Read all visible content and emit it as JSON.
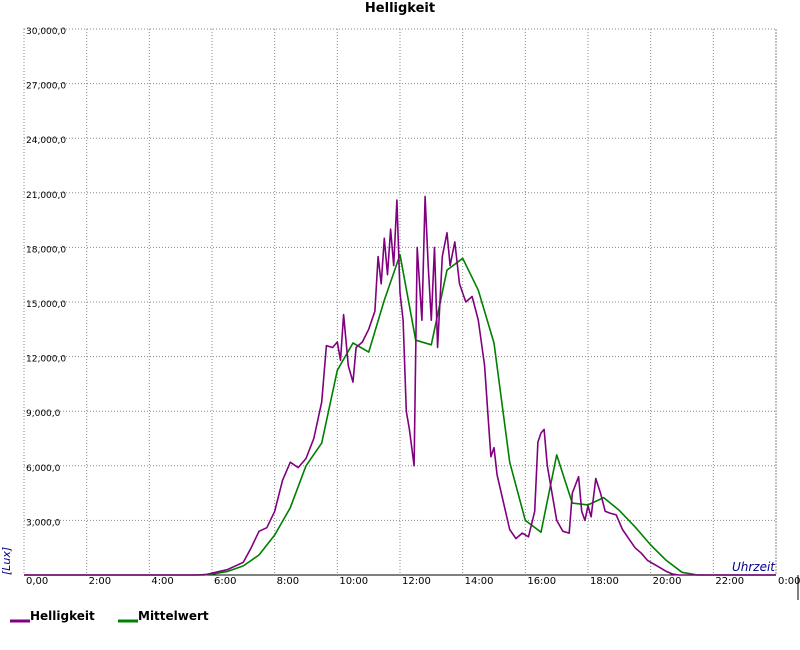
{
  "chart_data": {
    "type": "line",
    "title": "Helligkeit",
    "y_label": "[Lux]",
    "x_label": "Uhrzeit",
    "xlim": [
      0,
      24
    ],
    "xticks": [
      {
        "value": 0,
        "label": "0,00"
      },
      {
        "value": 2,
        "label": "2:00"
      },
      {
        "value": 4,
        "label": "4:00"
      },
      {
        "value": 6,
        "label": "6:00"
      },
      {
        "value": 8,
        "label": "8:00"
      },
      {
        "value": 10,
        "label": "10:00"
      },
      {
        "value": 12,
        "label": "12:00"
      },
      {
        "value": 14,
        "label": "14:00"
      },
      {
        "value": 16,
        "label": "16:00"
      },
      {
        "value": 18,
        "label": "18:00"
      },
      {
        "value": 20,
        "label": "20:00"
      },
      {
        "value": 22,
        "label": "22:00"
      },
      {
        "value": 24,
        "label": "0:00"
      }
    ],
    "ylim": [
      0,
      30000
    ],
    "yticks": [
      {
        "value": 3000,
        "label": "3,000,0"
      },
      {
        "value": 6000,
        "label": "6,000,0"
      },
      {
        "value": 9000,
        "label": "9,000,0"
      },
      {
        "value": 12000,
        "label": "12,000,0"
      },
      {
        "value": 15000,
        "label": "15,000,0"
      },
      {
        "value": 18000,
        "label": "18,000,0"
      },
      {
        "value": 21000,
        "label": "21,000,0"
      },
      {
        "value": 24000,
        "label": "24,000,0"
      },
      {
        "value": 27000,
        "label": "27,000,0"
      },
      {
        "value": 30000,
        "label": "30,000,0"
      }
    ],
    "grid": true,
    "series": [
      {
        "name": "Helligkeit",
        "color": "#800080",
        "x": [
          0,
          5.75,
          6.0,
          6.5,
          7.0,
          7.25,
          7.5,
          7.75,
          8.0,
          8.25,
          8.5,
          8.75,
          9.0,
          9.25,
          9.5,
          9.65,
          9.85,
          10.0,
          10.1,
          10.2,
          10.35,
          10.5,
          10.6,
          10.8,
          11.0,
          11.2,
          11.3,
          11.4,
          11.5,
          11.6,
          11.7,
          11.8,
          11.9,
          12.0,
          12.1,
          12.2,
          12.3,
          12.45,
          12.55,
          12.7,
          12.8,
          12.9,
          13.0,
          13.1,
          13.2,
          13.35,
          13.5,
          13.6,
          13.75,
          13.9,
          14.1,
          14.3,
          14.5,
          14.7,
          14.8,
          14.9,
          15.0,
          15.1,
          15.3,
          15.5,
          15.7,
          15.9,
          16.1,
          16.3,
          16.4,
          16.5,
          16.6,
          16.7,
          16.85,
          17.0,
          17.2,
          17.4,
          17.5,
          17.7,
          17.8,
          17.9,
          18.0,
          18.1,
          18.25,
          18.4,
          18.55,
          18.7,
          18.9,
          19.1,
          19.3,
          19.5,
          19.7,
          19.9,
          20.1,
          20.3,
          20.5,
          20.7,
          20.9,
          24
        ],
        "values": [
          0,
          0,
          100,
          300,
          700,
          1500,
          2400,
          2600,
          3500,
          5200,
          6200,
          5900,
          6400,
          7500,
          9500,
          12600,
          12500,
          12800,
          11800,
          14300,
          11500,
          10600,
          12500,
          12800,
          13500,
          14500,
          17500,
          16000,
          18500,
          16500,
          19000,
          17000,
          20600,
          15500,
          14000,
          9000,
          8000,
          6000,
          18000,
          14000,
          20800,
          17000,
          14000,
          18000,
          12500,
          17500,
          18800,
          17000,
          18300,
          16000,
          15000,
          15300,
          14000,
          11500,
          9000,
          6500,
          7000,
          5500,
          4000,
          2500,
          2000,
          2300,
          2100,
          3500,
          7300,
          7800,
          8000,
          6000,
          4500,
          3000,
          2400,
          2300,
          4500,
          5400,
          3500,
          3000,
          3800,
          3200,
          5300,
          4500,
          3500,
          3400,
          3300,
          2500,
          2000,
          1500,
          1200,
          800,
          600,
          400,
          200,
          50,
          0,
          0
        ]
      },
      {
        "name": "Mittelwert",
        "color": "#008000",
        "x": [
          0,
          5.5,
          6.0,
          6.5,
          7.0,
          7.5,
          8.0,
          8.5,
          9.0,
          9.5,
          10.0,
          10.5,
          11.0,
          11.5,
          12.0,
          12.5,
          13.0,
          13.5,
          14.0,
          14.5,
          15.0,
          15.5,
          16.0,
          16.5,
          17.0,
          17.5,
          18.0,
          18.5,
          19.0,
          19.5,
          20.0,
          20.5,
          21.0,
          21.5,
          24
        ],
        "values": [
          0,
          0,
          50,
          200,
          500,
          1100,
          2200,
          3700,
          6000,
          7250,
          11250,
          12750,
          12250,
          15100,
          17600,
          12900,
          12650,
          16750,
          17400,
          15650,
          12750,
          6200,
          3000,
          2350,
          6600,
          3950,
          3850,
          4250,
          3550,
          2650,
          1650,
          800,
          150,
          0,
          0
        ]
      }
    ]
  }
}
